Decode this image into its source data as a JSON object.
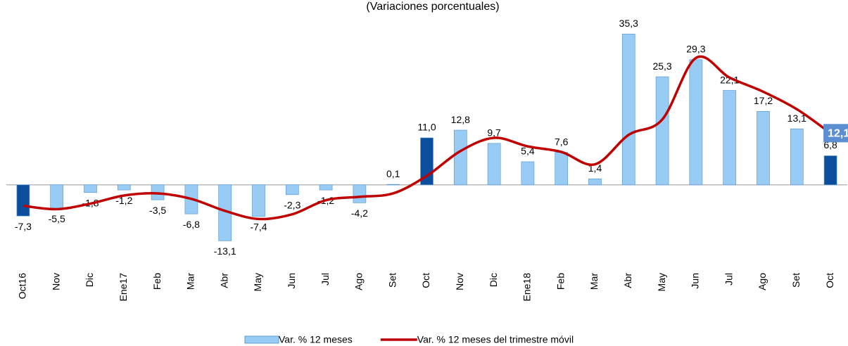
{
  "chart_data": {
    "type": "bar_line",
    "subtitle": "(Variaciones porcentuales)",
    "categories": [
      "Oct16",
      "Nov",
      "Dic",
      "Ene17",
      "Feb",
      "Mar",
      "Abr",
      "May",
      "Jun",
      "Jul",
      "Ago",
      "Set",
      "Oct",
      "Nov",
      "Dic",
      "Ene18",
      "Feb",
      "Mar",
      "Abr",
      "May",
      "Jun",
      "Jul",
      "Ago",
      "Set",
      "Oct"
    ],
    "series": [
      {
        "name": "Var. % 12 meses",
        "type": "bar",
        "color": "#99ccf5",
        "colors": [
          "#0b4f9c",
          "#99ccf5",
          "#99ccf5",
          "#99ccf5",
          "#99ccf5",
          "#99ccf5",
          "#99ccf5",
          "#99ccf5",
          "#99ccf5",
          "#99ccf5",
          "#99ccf5",
          "#99ccf5",
          "#0b4f9c",
          "#99ccf5",
          "#99ccf5",
          "#99ccf5",
          "#99ccf5",
          "#99ccf5",
          "#99ccf5",
          "#99ccf5",
          "#99ccf5",
          "#99ccf5",
          "#99ccf5",
          "#99ccf5",
          "#0b4f9c"
        ],
        "values": [
          -7.3,
          -5.5,
          -1.8,
          -1.2,
          -3.5,
          -6.8,
          -13.1,
          -7.4,
          -2.3,
          -1.2,
          -4.2,
          0.1,
          11.0,
          12.8,
          9.7,
          5.4,
          7.6,
          1.4,
          35.3,
          25.3,
          29.3,
          22.1,
          17.2,
          13.1,
          6.8
        ],
        "value_labels": [
          "-7,3",
          "-5,5",
          "-1,8",
          "-1,2",
          "-3,5",
          "-6,8",
          "-13,1",
          "-7,4",
          "-2,3",
          "-1,2",
          "-4,2",
          "0,1",
          "11,0",
          "12,8",
          "9,7",
          "5,4",
          "7,6",
          "1,4",
          "35,3",
          "25,3",
          "29,3",
          "22,1",
          "17,2",
          "13,1",
          "6,8"
        ]
      },
      {
        "name": "Var. % 12 meses del trimestre móvil",
        "type": "line",
        "color": "#c00000",
        "values": [
          -4.9,
          -5.7,
          -4.4,
          -2.5,
          -2.0,
          -3.3,
          -6.1,
          -8.0,
          -6.9,
          -3.6,
          -2.8,
          -2.0,
          2.1,
          7.9,
          11.0,
          9.0,
          7.7,
          4.8,
          11.7,
          15.3,
          29.7,
          25.1,
          21.8,
          17.7,
          12.1
        ],
        "value_labels": [
          null,
          null,
          null,
          null,
          null,
          null,
          null,
          null,
          null,
          null,
          null,
          null,
          null,
          null,
          null,
          null,
          null,
          null,
          null,
          null,
          null,
          null,
          null,
          null,
          "12,1"
        ]
      }
    ],
    "ylim": [
      -16,
      38
    ]
  }
}
